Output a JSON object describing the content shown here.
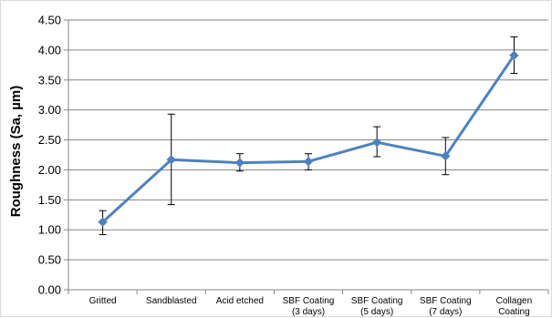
{
  "chart_data": {
    "type": "line",
    "title": "",
    "xlabel": "",
    "ylabel": "Roughness (Sa, µm)",
    "ylim": [
      0,
      4.5
    ],
    "ytick_step": 0.5,
    "y_tick_labels": [
      "0.00",
      "0.50",
      "1.00",
      "1.50",
      "2.00",
      "2.50",
      "3.00",
      "3.50",
      "4.00",
      "4.50"
    ],
    "grid": "horizontal",
    "legend": "none",
    "categories": [
      [
        "Gritted"
      ],
      [
        "Sandblasted"
      ],
      [
        "Acid etched"
      ],
      [
        "SBF Coating",
        "(3 days)"
      ],
      [
        "SBF Coating",
        "(5 days)"
      ],
      [
        "SBF Coating",
        "(7 days)"
      ],
      [
        "Collagen",
        "Coating"
      ]
    ],
    "series": [
      {
        "values": [
          1.13,
          2.17,
          2.12,
          2.14,
          2.46,
          2.23,
          3.91
        ],
        "error_low": [
          0.92,
          1.42,
          1.98,
          2.0,
          2.22,
          1.92,
          3.61
        ],
        "error_high": [
          1.32,
          2.93,
          2.27,
          2.27,
          2.72,
          2.54,
          4.22
        ],
        "color": "#4f81bd"
      }
    ]
  }
}
